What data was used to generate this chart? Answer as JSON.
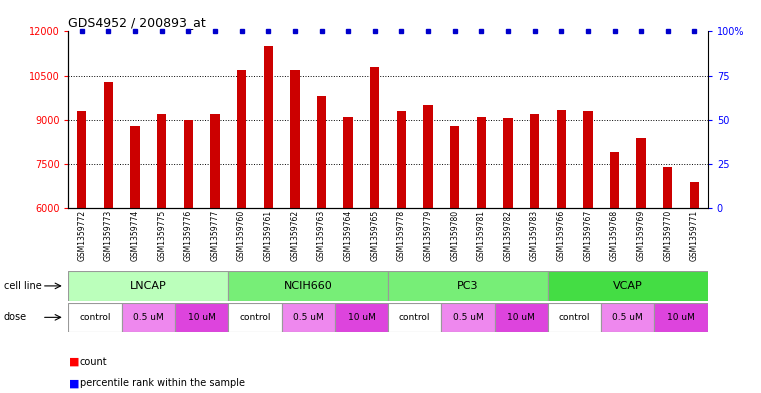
{
  "title": "GDS4952 / 200893_at",
  "samples": [
    "GSM1359772",
    "GSM1359773",
    "GSM1359774",
    "GSM1359775",
    "GSM1359776",
    "GSM1359777",
    "GSM1359760",
    "GSM1359761",
    "GSM1359762",
    "GSM1359763",
    "GSM1359764",
    "GSM1359765",
    "GSM1359778",
    "GSM1359779",
    "GSM1359780",
    "GSM1359781",
    "GSM1359782",
    "GSM1359783",
    "GSM1359766",
    "GSM1359767",
    "GSM1359768",
    "GSM1359769",
    "GSM1359770",
    "GSM1359771"
  ],
  "counts": [
    9300,
    10300,
    8800,
    9200,
    9000,
    9200,
    10700,
    11500,
    10700,
    9800,
    9100,
    10800,
    9300,
    9500,
    8800,
    9100,
    9050,
    9200,
    9350,
    9300,
    7900,
    8400,
    7400,
    6900
  ],
  "bar_color": "#cc0000",
  "percentile_color": "#0000cc",
  "ylim_left": [
    6000,
    12000
  ],
  "ylim_right": [
    0,
    100
  ],
  "yticks_left": [
    6000,
    7500,
    9000,
    10500,
    12000
  ],
  "yticks_right": [
    0,
    25,
    50,
    75,
    100
  ],
  "grid_lines": [
    7500,
    9000,
    10500
  ],
  "cell_line_defs": [
    {
      "name": "LNCAP",
      "start": 0,
      "end": 5,
      "color": "#bbffbb"
    },
    {
      "name": "NCIH660",
      "start": 6,
      "end": 11,
      "color": "#77ee77"
    },
    {
      "name": "PC3",
      "start": 12,
      "end": 17,
      "color": "#77ee77"
    },
    {
      "name": "VCAP",
      "start": 18,
      "end": 23,
      "color": "#44dd44"
    }
  ],
  "dose_spans": [
    {
      "start": 0,
      "end": 1,
      "label": "control",
      "color": "#ffffff"
    },
    {
      "start": 2,
      "end": 3,
      "label": "0.5 uM",
      "color": "#ee88ee"
    },
    {
      "start": 4,
      "end": 5,
      "label": "10 uM",
      "color": "#dd44dd"
    },
    {
      "start": 6,
      "end": 7,
      "label": "control",
      "color": "#ffffff"
    },
    {
      "start": 8,
      "end": 9,
      "label": "0.5 uM",
      "color": "#ee88ee"
    },
    {
      "start": 10,
      "end": 11,
      "label": "10 uM",
      "color": "#dd44dd"
    },
    {
      "start": 12,
      "end": 13,
      "label": "control",
      "color": "#ffffff"
    },
    {
      "start": 14,
      "end": 15,
      "label": "0.5 uM",
      "color": "#ee88ee"
    },
    {
      "start": 16,
      "end": 17,
      "label": "10 uM",
      "color": "#dd44dd"
    },
    {
      "start": 18,
      "end": 19,
      "label": "control",
      "color": "#ffffff"
    },
    {
      "start": 20,
      "end": 21,
      "label": "0.5 uM",
      "color": "#ee88ee"
    },
    {
      "start": 22,
      "end": 23,
      "label": "10 uM",
      "color": "#dd44dd"
    }
  ],
  "background_color": "#ffffff",
  "bar_width": 0.35,
  "title_fontsize": 9,
  "tick_fontsize": 7,
  "label_fontsize": 7,
  "sample_fontsize": 5.5,
  "cell_line_fontsize": 8,
  "dose_fontsize": 6.5
}
